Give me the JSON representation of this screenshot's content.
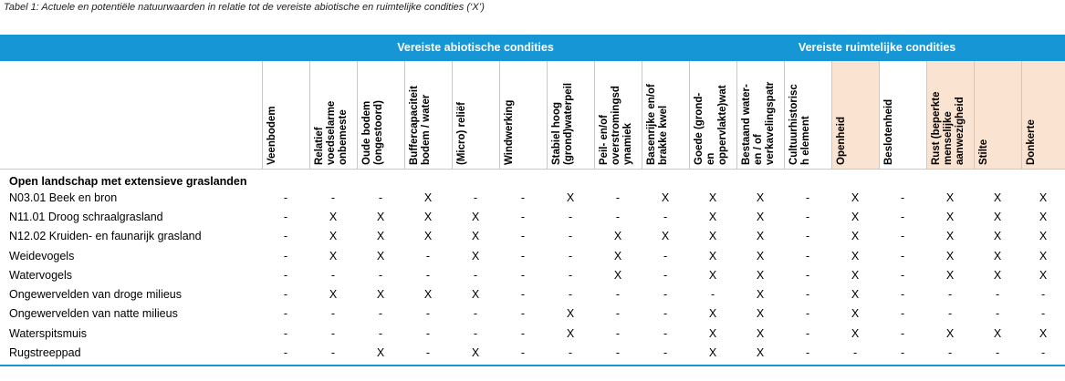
{
  "caption": "Tabel 1: Actuele en potentiële natuurwaarden in relatie tot de vereiste abiotische en ruimtelijke condities (‘X’)",
  "groups": {
    "abiotic": "Vereiste abiotische condities",
    "spatial": "Vereiste ruimtelijke condities"
  },
  "columns": [
    "Veenbodem",
    "Relatief\nvoedselarme\nonbemeste",
    "Oude bodem\n(ongestoord)",
    "Buffercapaciteit\nbodem / water",
    "(Micro) reliëf",
    "Windwerking",
    "Stabiel hoog\n(grond)waterpeil",
    "Peil- en/of\noverstromingsd\nynamiek",
    "Basenrijke en/of\nbrakke kwel",
    "Goede (grond-\nen\noppervlakte)wat",
    "Bestaand water-\nen / of\nverkavelingspatr",
    "Cultuurhistorisc\nh element",
    "Openheid",
    "Beslotenheid",
    "Rust (beperkte\nmenselijke\naanwezigheid",
    "Stilte",
    "Donkerte"
  ],
  "section_title": "Open landschap met extensieve graslanden",
  "rows": [
    {
      "name": "N03.01 Beek en bron",
      "v": [
        "-",
        "-",
        "-",
        "X",
        "-",
        "-",
        "X",
        "-",
        "X",
        "X",
        "X",
        "-",
        "X",
        "-",
        "X",
        "X",
        "X"
      ]
    },
    {
      "name": "N11.01 Droog schraalgrasland",
      "v": [
        "-",
        "X",
        "X",
        "X",
        "X",
        "-",
        "-",
        "-",
        "-",
        "X",
        "X",
        "-",
        "X",
        "-",
        "X",
        "X",
        "X"
      ]
    },
    {
      "name": "N12.02 Kruiden- en faunarijk grasland",
      "v": [
        "-",
        "X",
        "X",
        "X",
        "X",
        "-",
        "-",
        "X",
        "X",
        "X",
        "X",
        "-",
        "X",
        "-",
        "X",
        "X",
        "X"
      ]
    },
    {
      "name": "Weidevogels",
      "v": [
        "-",
        "X",
        "X",
        "-",
        "X",
        "-",
        "-",
        "X",
        "-",
        "X",
        "X",
        "-",
        "X",
        "-",
        "X",
        "X",
        "X"
      ]
    },
    {
      "name": "Watervogels",
      "v": [
        "-",
        "-",
        "-",
        "-",
        "-",
        "-",
        "-",
        "X",
        "-",
        "X",
        "X",
        "-",
        "X",
        "-",
        "X",
        "X",
        "X"
      ]
    },
    {
      "name": "Ongewervelden van droge milieus",
      "v": [
        "-",
        "X",
        "X",
        "X",
        "X",
        "-",
        "-",
        "-",
        "-",
        "-",
        "X",
        "-",
        "X",
        "-",
        "-",
        "-",
        "-"
      ]
    },
    {
      "name": "Ongewervelden van natte milieus",
      "v": [
        "-",
        "-",
        "-",
        "-",
        "-",
        "-",
        "X",
        "-",
        "-",
        "X",
        "X",
        "-",
        "X",
        "-",
        "-",
        "-",
        "-"
      ]
    },
    {
      "name": "Waterspitsmuis",
      "v": [
        "-",
        "-",
        "-",
        "-",
        "-",
        "-",
        "X",
        "-",
        "-",
        "X",
        "X",
        "-",
        "X",
        "-",
        "X",
        "X",
        "X"
      ]
    },
    {
      "name": "Rugstreeppad",
      "v": [
        "-",
        "-",
        "X",
        "-",
        "X",
        "-",
        "-",
        "-",
        "-",
        "X",
        "X",
        "-",
        "-",
        "-",
        "-",
        "-",
        "-"
      ]
    }
  ],
  "colors": {
    "band": "#1796d6",
    "peach_header": "#fbe3d1"
  }
}
